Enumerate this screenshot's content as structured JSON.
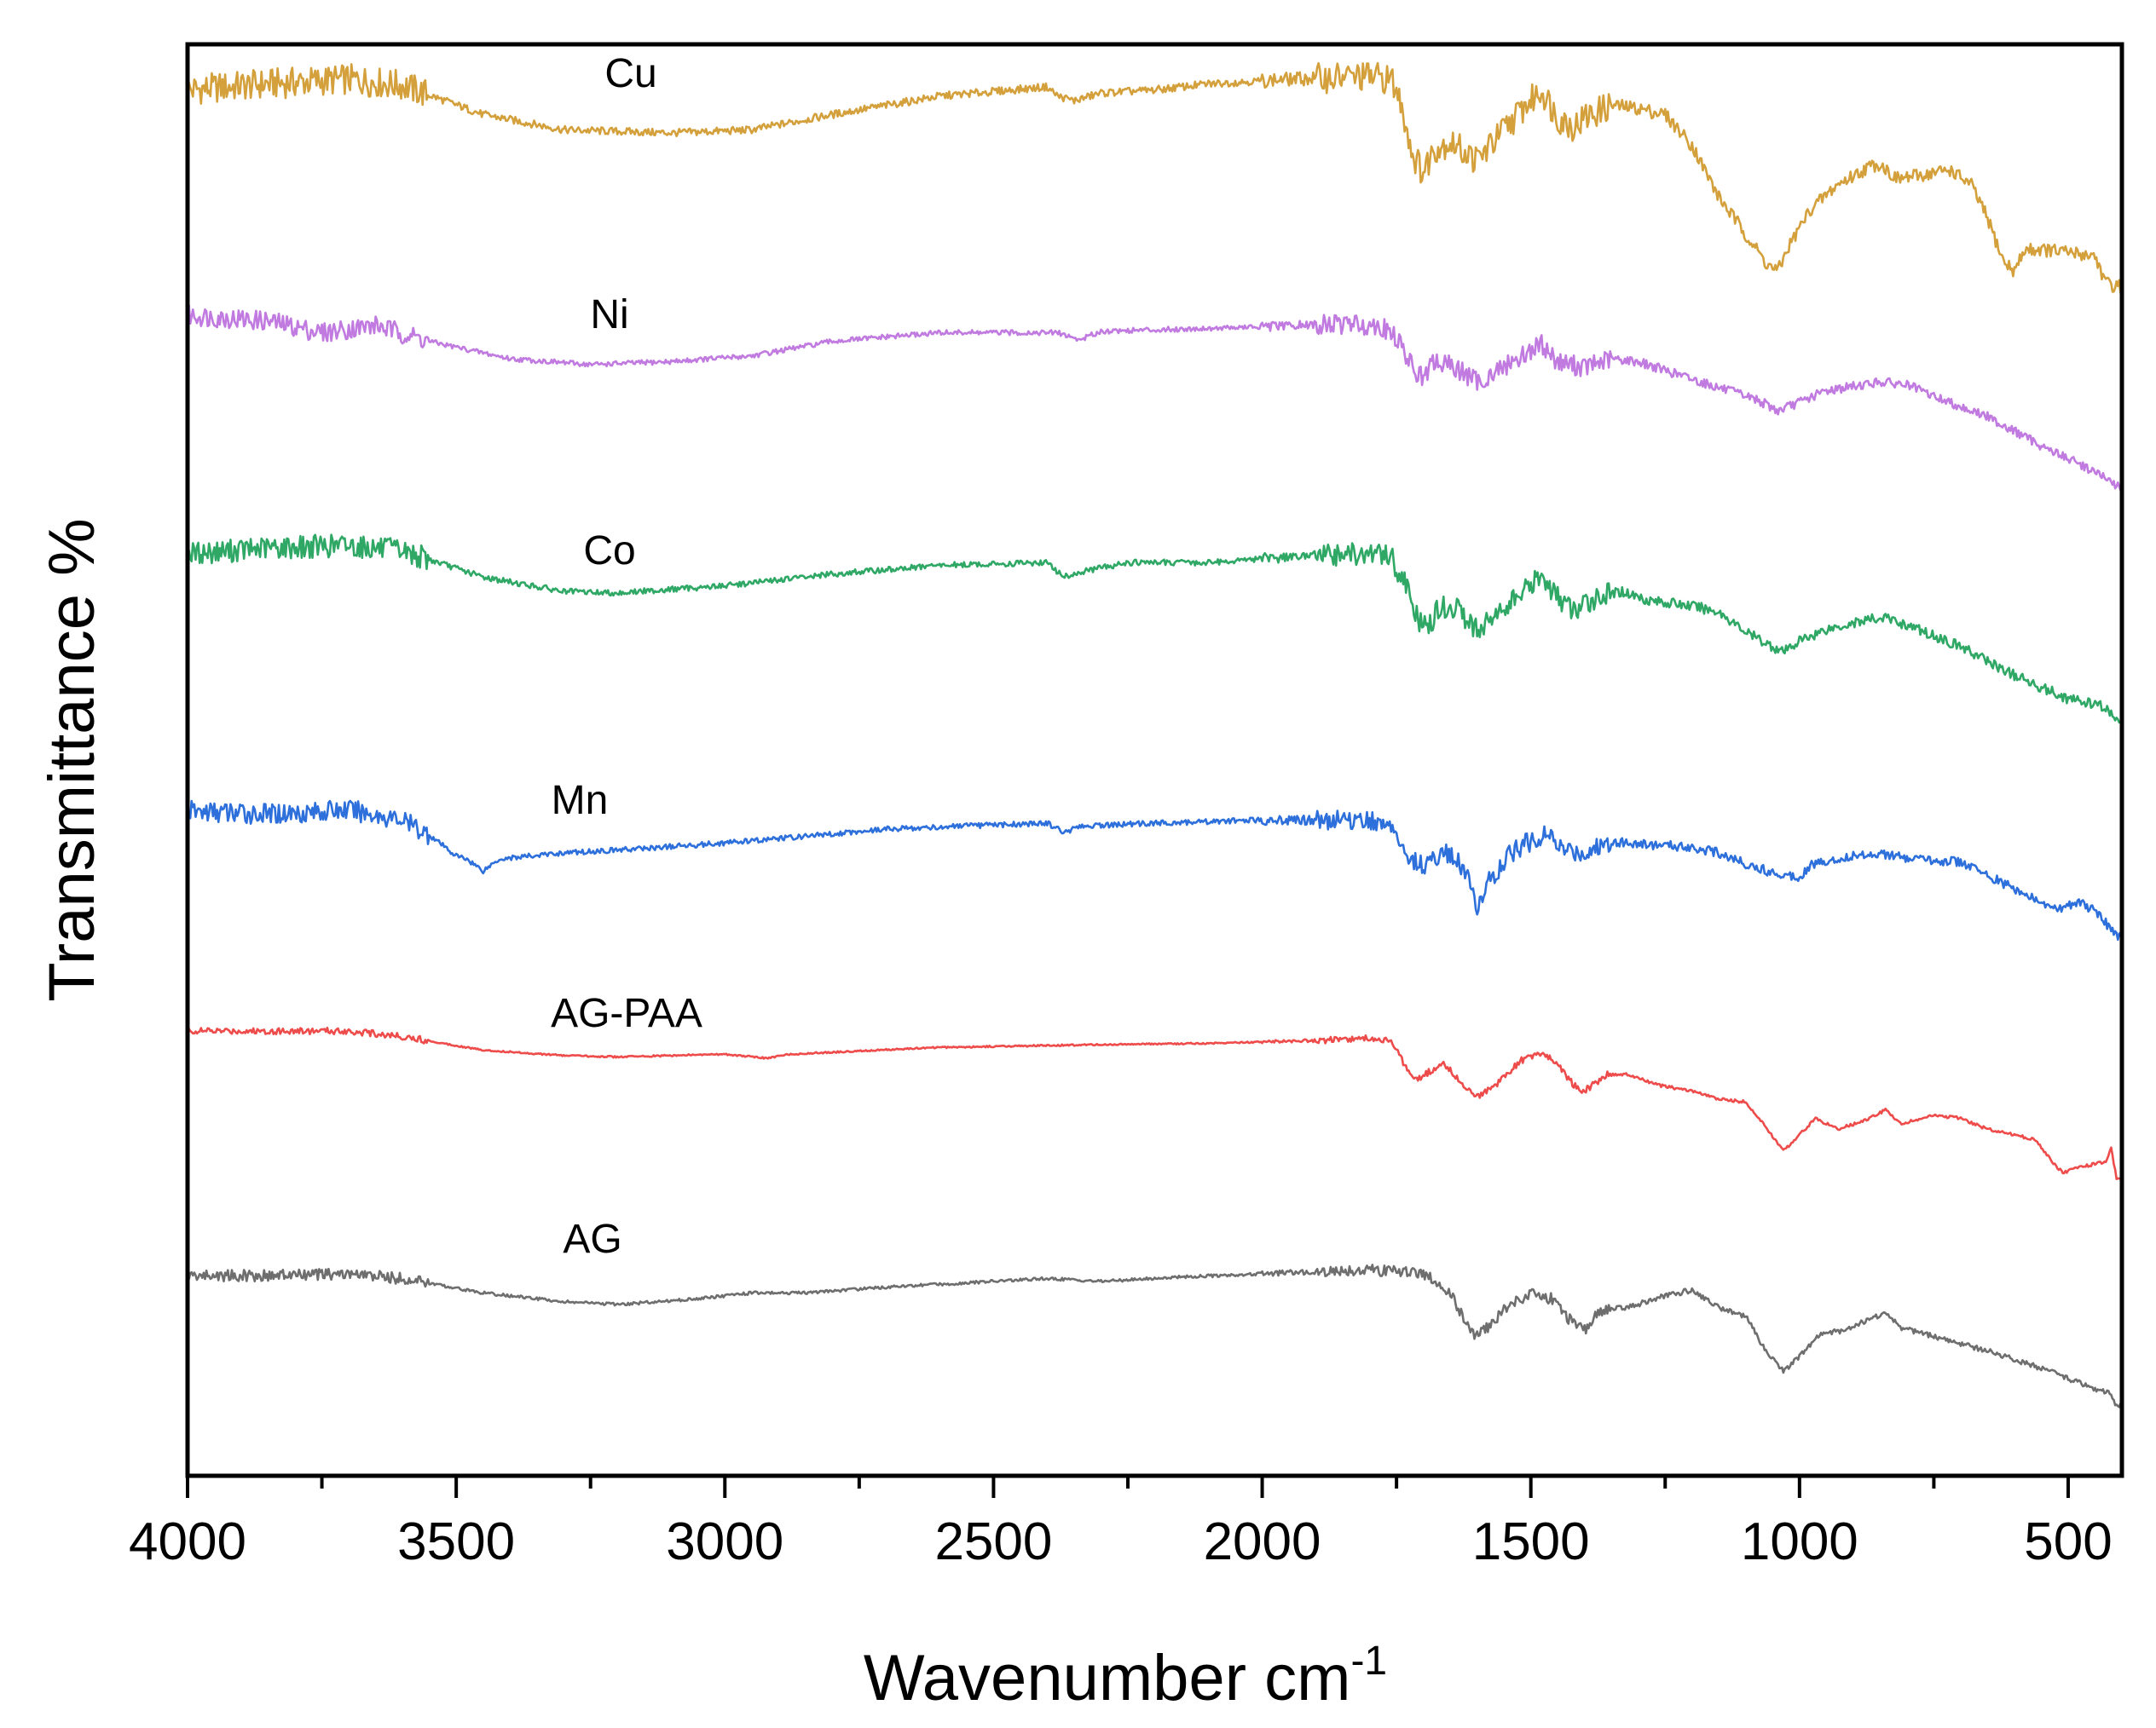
{
  "chart_data": {
    "type": "line",
    "xlabel": "Wavenumber cm",
    "xlabel_sup": "-1",
    "ylabel": "Transmittance %",
    "xlim": [
      4000,
      400
    ],
    "x_reversed": true,
    "x_ticks": [
      4000,
      3500,
      3000,
      2500,
      2000,
      1500,
      1000,
      500
    ],
    "y_ticks_shown": false,
    "grid": false,
    "legend": "none (series labelled inline above each trace)",
    "y_units": "arbitrary offset transmittance",
    "series": [
      {
        "name": "Cu",
        "color": "#D4A03C",
        "noise": 0.5,
        "points": [
          [
            4000,
            -0.1
          ],
          [
            3850,
            0.1
          ],
          [
            3700,
            0.25
          ],
          [
            3600,
            0.05
          ],
          [
            3450,
            -0.9
          ],
          [
            3300,
            -1.4
          ],
          [
            3100,
            -1.5
          ],
          [
            2950,
            -1.4
          ],
          [
            2800,
            -0.9
          ],
          [
            2600,
            -0.3
          ],
          [
            2400,
            0
          ],
          [
            2380,
            -0.3
          ],
          [
            2350,
            -0.45
          ],
          [
            2300,
            -0.2
          ],
          [
            2200,
            -0.1
          ],
          [
            2100,
            0.1
          ],
          [
            1950,
            0.25
          ],
          [
            1800,
            0.35
          ],
          [
            1760,
            0.25
          ],
          [
            1740,
            -0.6
          ],
          [
            1720,
            -2.2
          ],
          [
            1700,
            -2.8
          ],
          [
            1680,
            -2.0
          ],
          [
            1650,
            -1.8
          ],
          [
            1600,
            -2.4
          ],
          [
            1560,
            -1.6
          ],
          [
            1520,
            -0.8
          ],
          [
            1480,
            -0.1
          ],
          [
            1450,
            -1.0
          ],
          [
            1420,
            -1.3
          ],
          [
            1400,
            -1.0
          ],
          [
            1350,
            -0.6
          ],
          [
            1300,
            -0.7
          ],
          [
            1250,
            -0.9
          ],
          [
            1200,
            -1.9
          ],
          [
            1150,
            -3.6
          ],
          [
            1100,
            -4.8
          ],
          [
            1060,
            -5.8
          ],
          [
            1040,
            -6.0
          ],
          [
            1020,
            -5.2
          ],
          [
            980,
            -4.0
          ],
          [
            930,
            -3.2
          ],
          [
            870,
            -2.6
          ],
          [
            850,
            -2.5
          ],
          [
            820,
            -3.0
          ],
          [
            780,
            -2.9
          ],
          [
            720,
            -2.7
          ],
          [
            680,
            -3.2
          ],
          [
            650,
            -4.3
          ],
          [
            620,
            -5.7
          ],
          [
            600,
            -6.0
          ],
          [
            580,
            -5.3
          ],
          [
            550,
            -5.3
          ],
          [
            500,
            -5.4
          ],
          [
            450,
            -5.5
          ],
          [
            430,
            -6.4
          ],
          [
            410,
            -6.5
          ]
        ]
      },
      {
        "name": "Ni",
        "color": "#C07AE0",
        "noise": 0.35,
        "points": [
          [
            4000,
            0
          ],
          [
            3850,
            -0.2
          ],
          [
            3750,
            -0.6
          ],
          [
            3650,
            -0.35
          ],
          [
            3550,
            -0.9
          ],
          [
            3400,
            -1.5
          ],
          [
            3250,
            -1.7
          ],
          [
            3100,
            -1.6
          ],
          [
            2950,
            -1.4
          ],
          [
            2800,
            -0.9
          ],
          [
            2600,
            -0.6
          ],
          [
            2380,
            -0.6
          ],
          [
            2340,
            -0.85
          ],
          [
            2300,
            -0.55
          ],
          [
            2200,
            -0.5
          ],
          [
            2000,
            -0.4
          ],
          [
            1850,
            -0.3
          ],
          [
            1780,
            -0.35
          ],
          [
            1750,
            -0.8
          ],
          [
            1720,
            -1.8
          ],
          [
            1700,
            -2.2
          ],
          [
            1680,
            -1.6
          ],
          [
            1640,
            -1.8
          ],
          [
            1600,
            -2.3
          ],
          [
            1560,
            -1.9
          ],
          [
            1500,
            -1.2
          ],
          [
            1480,
            -1.0
          ],
          [
            1450,
            -1.6
          ],
          [
            1400,
            -1.8
          ],
          [
            1350,
            -1.5
          ],
          [
            1300,
            -1.6
          ],
          [
            1250,
            -1.9
          ],
          [
            1150,
            -2.5
          ],
          [
            1080,
            -2.9
          ],
          [
            1040,
            -3.3
          ],
          [
            1000,
            -3.0
          ],
          [
            950,
            -2.6
          ],
          [
            850,
            -2.3
          ],
          [
            800,
            -2.4
          ],
          [
            750,
            -2.8
          ],
          [
            650,
            -3.5
          ],
          [
            550,
            -4.5
          ],
          [
            450,
            -5.4
          ],
          [
            410,
            -5.9
          ]
        ]
      },
      {
        "name": "Co",
        "color": "#2FA866",
        "noise": 0.4,
        "points": [
          [
            4000,
            0
          ],
          [
            3850,
            0.2
          ],
          [
            3700,
            0.3
          ],
          [
            3600,
            0.1
          ],
          [
            3450,
            -0.8
          ],
          [
            3300,
            -1.3
          ],
          [
            3200,
            -1.35
          ],
          [
            3000,
            -1.1
          ],
          [
            2800,
            -0.7
          ],
          [
            2600,
            -0.4
          ],
          [
            2400,
            -0.3
          ],
          [
            2370,
            -0.8
          ],
          [
            2330,
            -0.6
          ],
          [
            2250,
            -0.3
          ],
          [
            2100,
            -0.3
          ],
          [
            1950,
            -0.1
          ],
          [
            1800,
            0
          ],
          [
            1760,
            -0.1
          ],
          [
            1730,
            -1.2
          ],
          [
            1710,
            -2.3
          ],
          [
            1690,
            -2.6
          ],
          [
            1670,
            -1.8
          ],
          [
            1640,
            -1.9
          ],
          [
            1600,
            -2.6
          ],
          [
            1560,
            -2.0
          ],
          [
            1520,
            -1.4
          ],
          [
            1480,
            -0.8
          ],
          [
            1460,
            -1.3
          ],
          [
            1420,
            -2.0
          ],
          [
            1380,
            -1.5
          ],
          [
            1330,
            -1.3
          ],
          [
            1280,
            -1.6
          ],
          [
            1200,
            -1.8
          ],
          [
            1150,
            -2.0
          ],
          [
            1100,
            -2.7
          ],
          [
            1050,
            -3.2
          ],
          [
            1030,
            -3.4
          ],
          [
            1000,
            -3.0
          ],
          [
            950,
            -2.6
          ],
          [
            880,
            -2.3
          ],
          [
            840,
            -2.2
          ],
          [
            780,
            -2.6
          ],
          [
            700,
            -3.2
          ],
          [
            600,
            -4.2
          ],
          [
            500,
            -5.0
          ],
          [
            430,
            -5.3
          ],
          [
            410,
            -5.8
          ]
        ]
      },
      {
        "name": "Mn",
        "color": "#2D6FDB",
        "noise": 0.35,
        "points": [
          [
            4000,
            0
          ],
          [
            3850,
            -0.1
          ],
          [
            3700,
            0.05
          ],
          [
            3600,
            -0.3
          ],
          [
            3550,
            -0.8
          ],
          [
            3500,
            -1.5
          ],
          [
            3480,
            -1.6
          ],
          [
            3450,
            -2.0
          ],
          [
            3420,
            -1.6
          ],
          [
            3300,
            -1.4
          ],
          [
            3150,
            -1.25
          ],
          [
            2950,
            -1.0
          ],
          [
            2700,
            -0.6
          ],
          [
            2400,
            -0.4
          ],
          [
            2370,
            -0.7
          ],
          [
            2330,
            -0.5
          ],
          [
            2200,
            -0.4
          ],
          [
            2000,
            -0.3
          ],
          [
            1800,
            -0.3
          ],
          [
            1760,
            -0.5
          ],
          [
            1730,
            -1.6
          ],
          [
            1700,
            -1.8
          ],
          [
            1660,
            -1.4
          ],
          [
            1630,
            -1.8
          ],
          [
            1610,
            -2.6
          ],
          [
            1600,
            -3.2
          ],
          [
            1580,
            -2.4
          ],
          [
            1540,
            -1.4
          ],
          [
            1500,
            -1.0
          ],
          [
            1470,
            -0.8
          ],
          [
            1440,
            -1.3
          ],
          [
            1400,
            -1.4
          ],
          [
            1350,
            -1.0
          ],
          [
            1300,
            -1.1
          ],
          [
            1200,
            -1.2
          ],
          [
            1150,
            -1.4
          ],
          [
            1080,
            -1.9
          ],
          [
            1040,
            -2.1
          ],
          [
            1000,
            -2.2
          ],
          [
            980,
            -1.8
          ],
          [
            900,
            -1.5
          ],
          [
            850,
            -1.4
          ],
          [
            800,
            -1.6
          ],
          [
            700,
            -1.7
          ],
          [
            600,
            -2.6
          ],
          [
            550,
            -3.1
          ],
          [
            520,
            -3.3
          ],
          [
            480,
            -3.0
          ],
          [
            440,
            -3.5
          ],
          [
            410,
            -4.2
          ]
        ]
      },
      {
        "name": "AG-PAA",
        "color": "#EE4B4B",
        "noise": 0.12,
        "points": [
          [
            4000,
            0
          ],
          [
            3800,
            0
          ],
          [
            3700,
            0
          ],
          [
            3600,
            -0.2
          ],
          [
            3450,
            -0.7
          ],
          [
            3300,
            -0.9
          ],
          [
            3200,
            -0.95
          ],
          [
            3000,
            -0.85
          ],
          [
            2920,
            -1.0
          ],
          [
            2880,
            -0.85
          ],
          [
            2600,
            -0.6
          ],
          [
            2300,
            -0.5
          ],
          [
            2100,
            -0.45
          ],
          [
            1900,
            -0.35
          ],
          [
            1790,
            -0.25
          ],
          [
            1760,
            -0.4
          ],
          [
            1730,
            -1.4
          ],
          [
            1710,
            -1.8
          ],
          [
            1690,
            -1.5
          ],
          [
            1660,
            -1.2
          ],
          [
            1640,
            -1.7
          ],
          [
            1600,
            -2.4
          ],
          [
            1560,
            -1.9
          ],
          [
            1520,
            -1.1
          ],
          [
            1480,
            -0.8
          ],
          [
            1450,
            -1.2
          ],
          [
            1420,
            -2.0
          ],
          [
            1400,
            -2.2
          ],
          [
            1360,
            -1.6
          ],
          [
            1320,
            -1.6
          ],
          [
            1260,
            -2.0
          ],
          [
            1200,
            -2.2
          ],
          [
            1150,
            -2.5
          ],
          [
            1100,
            -2.6
          ],
          [
            1060,
            -3.6
          ],
          [
            1030,
            -4.4
          ],
          [
            1000,
            -3.8
          ],
          [
            970,
            -3.2
          ],
          [
            930,
            -3.6
          ],
          [
            880,
            -3.3
          ],
          [
            840,
            -2.9
          ],
          [
            810,
            -3.4
          ],
          [
            750,
            -3.1
          ],
          [
            700,
            -3.2
          ],
          [
            650,
            -3.6
          ],
          [
            600,
            -3.8
          ],
          [
            560,
            -4.0
          ],
          [
            530,
            -4.8
          ],
          [
            510,
            -5.2
          ],
          [
            480,
            -5.0
          ],
          [
            430,
            -4.8
          ],
          [
            420,
            -4.3
          ],
          [
            410,
            -5.4
          ]
        ]
      },
      {
        "name": "AG",
        "color": "#6E6E6E",
        "noise": 0.2,
        "points": [
          [
            4000,
            0
          ],
          [
            3850,
            0
          ],
          [
            3700,
            0.05
          ],
          [
            3600,
            -0.1
          ],
          [
            3450,
            -0.6
          ],
          [
            3300,
            -0.9
          ],
          [
            3200,
            -1.0
          ],
          [
            3050,
            -0.8
          ],
          [
            2950,
            -0.6
          ],
          [
            2850,
            -0.6
          ],
          [
            2700,
            -0.4
          ],
          [
            2400,
            -0.1
          ],
          [
            2300,
            -0.2
          ],
          [
            2150,
            -0.05
          ],
          [
            1950,
            0.1
          ],
          [
            1800,
            0.2
          ],
          [
            1700,
            0.1
          ],
          [
            1650,
            -0.6
          ],
          [
            1620,
            -1.7
          ],
          [
            1600,
            -2.1
          ],
          [
            1580,
            -1.8
          ],
          [
            1540,
            -1.0
          ],
          [
            1500,
            -0.6
          ],
          [
            1460,
            -0.8
          ],
          [
            1420,
            -1.7
          ],
          [
            1400,
            -1.9
          ],
          [
            1370,
            -1.2
          ],
          [
            1320,
            -1.1
          ],
          [
            1250,
            -0.7
          ],
          [
            1200,
            -0.5
          ],
          [
            1150,
            -1.1
          ],
          [
            1100,
            -1.4
          ],
          [
            1070,
            -2.4
          ],
          [
            1030,
            -3.3
          ],
          [
            1000,
            -2.8
          ],
          [
            960,
            -2.0
          ],
          [
            920,
            -1.9
          ],
          [
            870,
            -1.5
          ],
          [
            840,
            -1.3
          ],
          [
            810,
            -1.8
          ],
          [
            750,
            -2.1
          ],
          [
            650,
            -2.6
          ],
          [
            550,
            -3.2
          ],
          [
            480,
            -3.7
          ],
          [
            420,
            -4.1
          ],
          [
            410,
            -4.5
          ]
        ]
      }
    ]
  }
}
